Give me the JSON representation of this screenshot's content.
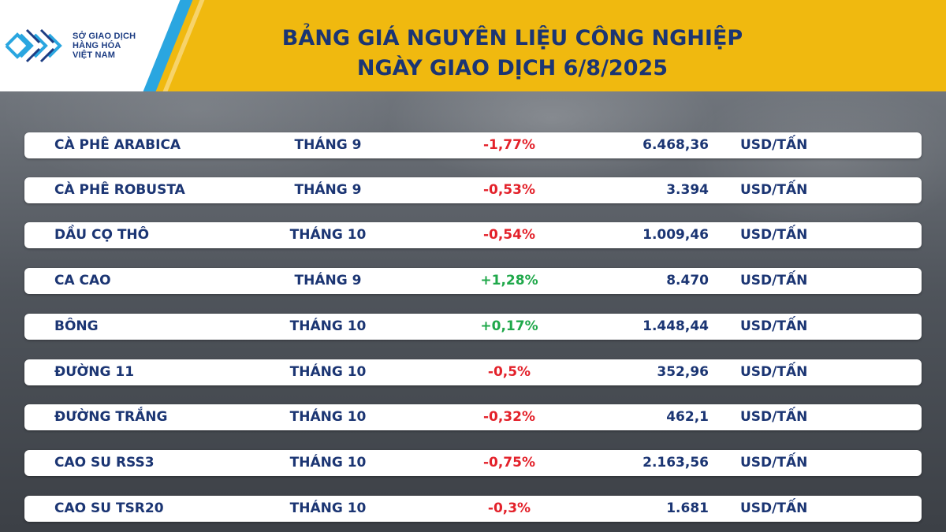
{
  "header": {
    "title_line1": "BẢNG GIÁ NGUYÊN LIỆU CÔNG NGHIỆP",
    "title_line2": "NGÀY GIAO DỊCH 6/8/2025",
    "logo_line1": "SỞ GIAO DỊCH",
    "logo_line2": "HÀNG HÓA",
    "logo_line3": "VIỆT NAM"
  },
  "colors": {
    "banner": "#f0b90f",
    "text": "#1b3573",
    "negative": "#e3212a",
    "positive": "#1fa84a",
    "logo_accent": "#2aa6e0"
  },
  "rows": [
    {
      "name": "CÀ PHÊ ARABICA",
      "month": "THÁNG 9",
      "change": "-1,77%",
      "direction": "down",
      "price": "6.468,36",
      "unit": "USD/TẤN"
    },
    {
      "name": "CÀ PHÊ ROBUSTA",
      "month": "THÁNG 9",
      "change": "-0,53%",
      "direction": "down",
      "price": "3.394",
      "unit": "USD/TẤN"
    },
    {
      "name": "DẦU CỌ THÔ",
      "month": "THÁNG 10",
      "change": "-0,54%",
      "direction": "down",
      "price": "1.009,46",
      "unit": "USD/TẤN"
    },
    {
      "name": "CA CAO",
      "month": "THÁNG 9",
      "change": "+1,28%",
      "direction": "up",
      "price": "8.470",
      "unit": "USD/TẤN"
    },
    {
      "name": "BÔNG",
      "month": "THÁNG 10",
      "change": "+0,17%",
      "direction": "up",
      "price": "1.448,44",
      "unit": "USD/TẤN"
    },
    {
      "name": "ĐƯỜNG 11",
      "month": "THÁNG 10",
      "change": "-0,5%",
      "direction": "down",
      "price": "352,96",
      "unit": "USD/TẤN"
    },
    {
      "name": "ĐƯỜNG TRẮNG",
      "month": "THÁNG 10",
      "change": "-0,32%",
      "direction": "down",
      "price": "462,1",
      "unit": "USD/TẤN"
    },
    {
      "name": "CAO SU RSS3",
      "month": "THÁNG 10",
      "change": "-0,75%",
      "direction": "down",
      "price": "2.163,56",
      "unit": "USD/TẤN"
    },
    {
      "name": "CAO SU TSR20",
      "month": "THÁNG 10",
      "change": "-0,3%",
      "direction": "down",
      "price": "1.681",
      "unit": "USD/TẤN"
    }
  ]
}
